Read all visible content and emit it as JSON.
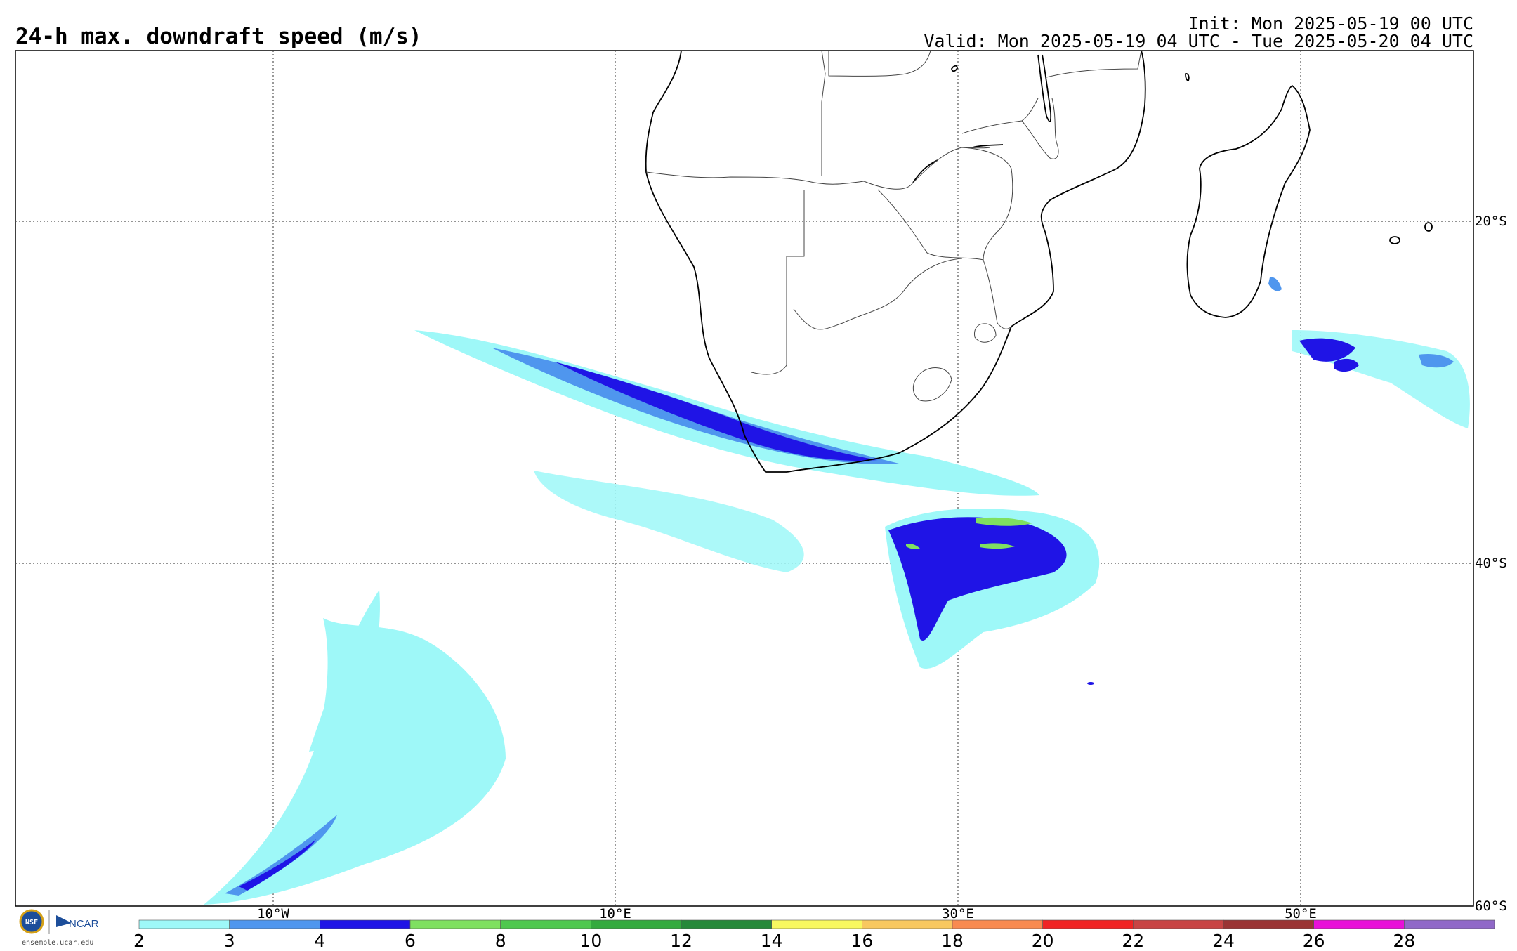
{
  "title": "24-h max. downdraft speed (m/s)",
  "init_text": "Init: Mon 2025-05-19 00 UTC",
  "valid_text": "Valid: Mon 2025-05-19 04 UTC - Tue 2025-05-20 04 UTC",
  "longitude_labels": [
    "10°W",
    "10°E",
    "30°E",
    "50°E"
  ],
  "latitude_labels": [
    "20°S",
    "40°S",
    "60°S"
  ],
  "logos": {
    "nsf": "NSF",
    "ncar": "NCAR",
    "site": "ensemble.ucar.edu"
  },
  "colorbar": {
    "tick_labels": [
      "2",
      "3",
      "4",
      "6",
      "8",
      "10",
      "12",
      "14",
      "16",
      "18",
      "20",
      "22",
      "24",
      "26",
      "28"
    ],
    "colors": [
      "#9ef8f8",
      "#4f96ee",
      "#1f14e6",
      "#7fe060",
      "#4fc84f",
      "#34aa3e",
      "#26893a",
      "#f8f860",
      "#f8c860",
      "#f88a50",
      "#f02424",
      "#c84444",
      "#9a3434",
      "#e810d8",
      "#9068c8"
    ]
  },
  "field_colors": {
    "level_2": "#9ef8f8",
    "level_3": "#4f96ee",
    "level_4": "#1f14e6",
    "level_6": "#7fe060"
  }
}
